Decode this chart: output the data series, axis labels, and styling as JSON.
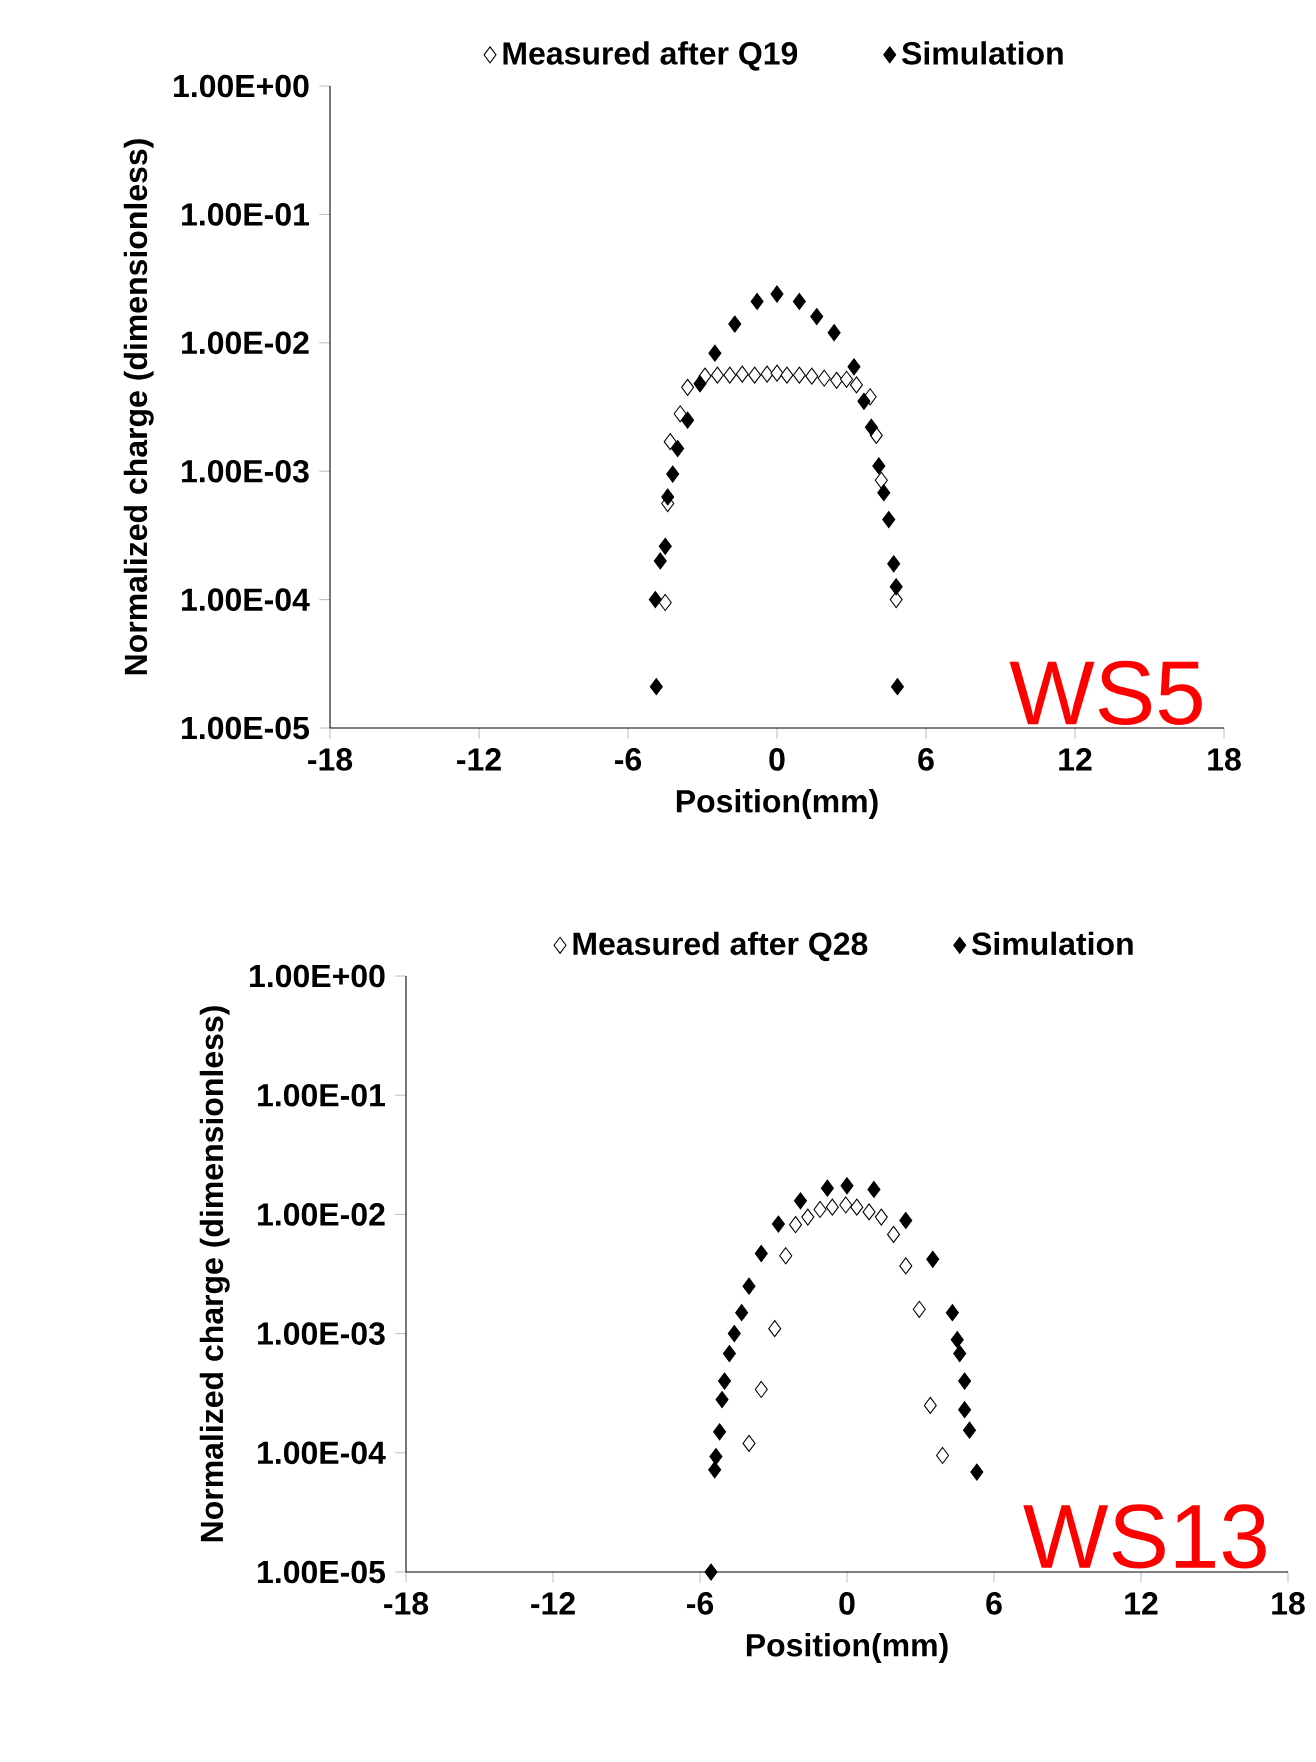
{
  "chart_data": [
    {
      "type": "scatter",
      "xlabel": "Position(mm)",
      "ylabel": "Normalized charge (dimensionless)",
      "annotations": [
        "WS5"
      ],
      "log": "y",
      "marker": "diamond",
      "legend": "top",
      "grid": false,
      "xlim": [
        -18,
        18
      ],
      "xticks": [
        -18,
        -12,
        -6,
        0,
        6,
        12,
        18
      ],
      "ylim": [
        1e-05,
        1
      ],
      "yticks": [
        {
          "value": 1e-05,
          "label": "1.00E-05"
        },
        {
          "value": 0.0001,
          "label": "1.00E-04"
        },
        {
          "value": 0.001,
          "label": "1.00E-03"
        },
        {
          "value": 0.01,
          "label": "1.00E-02"
        },
        {
          "value": 0.1,
          "label": "1.00E-01"
        },
        {
          "value": 1,
          "label": "1.00E+00"
        }
      ],
      "series": [
        {
          "name": "Measured after Q19",
          "color": "#ffffff",
          "x": [
            -4.5,
            -4.4,
            -4.3,
            -3.9,
            -3.6,
            -2.9,
            -2.4,
            -1.9,
            -1.4,
            -0.9,
            -0.4,
            0,
            0.4,
            0.9,
            1.4,
            1.9,
            2.4,
            2.8,
            3.2,
            3.75,
            4.0,
            4.2,
            4.8
          ],
          "values": [
            9.5e-05,
            0.00056,
            0.0017,
            0.0028,
            0.0045,
            0.0055,
            0.0056,
            0.0056,
            0.0057,
            0.0056,
            0.0057,
            0.0058,
            0.0056,
            0.0056,
            0.0055,
            0.0053,
            0.0051,
            0.0052,
            0.0047,
            0.0038,
            0.0019,
            0.00085,
            0.0001
          ]
        },
        {
          "name": "Simulation",
          "color": "#000000",
          "x": [
            -4.86,
            -4.9,
            -4.7,
            -4.5,
            -4.4,
            -4.2,
            -4.0,
            -3.6,
            -3.1,
            -2.5,
            -1.7,
            -0.8,
            0,
            0.9,
            1.6,
            2.3,
            3.1,
            3.5,
            3.8,
            4.1,
            4.3,
            4.5,
            4.7,
            4.8,
            4.85
          ],
          "values": [
            2.1e-05,
            0.0001,
            0.0002,
            0.00026,
            0.00063,
            0.00095,
            0.0015,
            0.0025,
            0.0048,
            0.0083,
            0.014,
            0.021,
            0.024,
            0.021,
            0.016,
            0.012,
            0.0065,
            0.0035,
            0.0022,
            0.0011,
            0.00068,
            0.00042,
            0.00019,
            0.000126,
            2.1e-05
          ]
        }
      ]
    },
    {
      "type": "scatter",
      "xlabel": "Position(mm)",
      "ylabel": "Normalized charge (dimensionless)",
      "annotations": [
        "WS13"
      ],
      "log": "y",
      "marker": "diamond",
      "legend": "top",
      "grid": false,
      "xlim": [
        -18,
        18
      ],
      "xticks": [
        -18,
        -12,
        -6,
        0,
        6,
        12,
        18
      ],
      "ylim": [
        1e-05,
        1
      ],
      "yticks": [
        {
          "value": 1e-05,
          "label": "1.00E-05"
        },
        {
          "value": 0.0001,
          "label": "1.00E-04"
        },
        {
          "value": 0.001,
          "label": "1.00E-03"
        },
        {
          "value": 0.01,
          "label": "1.00E-02"
        },
        {
          "value": 0.1,
          "label": "1.00E-01"
        },
        {
          "value": 1,
          "label": "1.00E+00"
        }
      ],
      "series": [
        {
          "name": "Measured after Q28",
          "color": "#ffffff",
          "x": [
            -4.0,
            -3.5,
            -2.95,
            -2.5,
            -2.1,
            -1.6,
            -1.1,
            -0.6,
            -0.05,
            0.4,
            0.9,
            1.4,
            1.9,
            2.4,
            2.95,
            3.4,
            3.9
          ],
          "values": [
            0.00012,
            0.00034,
            0.0011,
            0.0045,
            0.0082,
            0.0095,
            0.011,
            0.0115,
            0.012,
            0.0115,
            0.0105,
            0.0095,
            0.0068,
            0.0037,
            0.0016,
            0.00025,
            9.5e-05
          ]
        },
        {
          "name": "Simulation",
          "color": "#000000",
          "x": [
            -5.55,
            -5.4,
            -5.35,
            -5.2,
            -5.1,
            -5.0,
            -4.8,
            -4.6,
            -4.3,
            -4.0,
            -3.5,
            -2.8,
            -1.9,
            -0.8,
            0,
            1.1,
            2.4,
            3.5,
            4.3,
            4.5,
            4.6,
            4.8,
            4.8,
            5.0,
            5.3
          ],
          "values": [
            1e-05,
            7.2e-05,
            9.3e-05,
            0.00015,
            0.00028,
            0.0004,
            0.00068,
            0.001,
            0.0015,
            0.0025,
            0.0047,
            0.0083,
            0.013,
            0.0166,
            0.0174,
            0.0162,
            0.0089,
            0.0042,
            0.0015,
            0.00089,
            0.00068,
            0.0004,
            0.00023,
            0.000155,
            6.9e-05
          ]
        }
      ]
    }
  ]
}
